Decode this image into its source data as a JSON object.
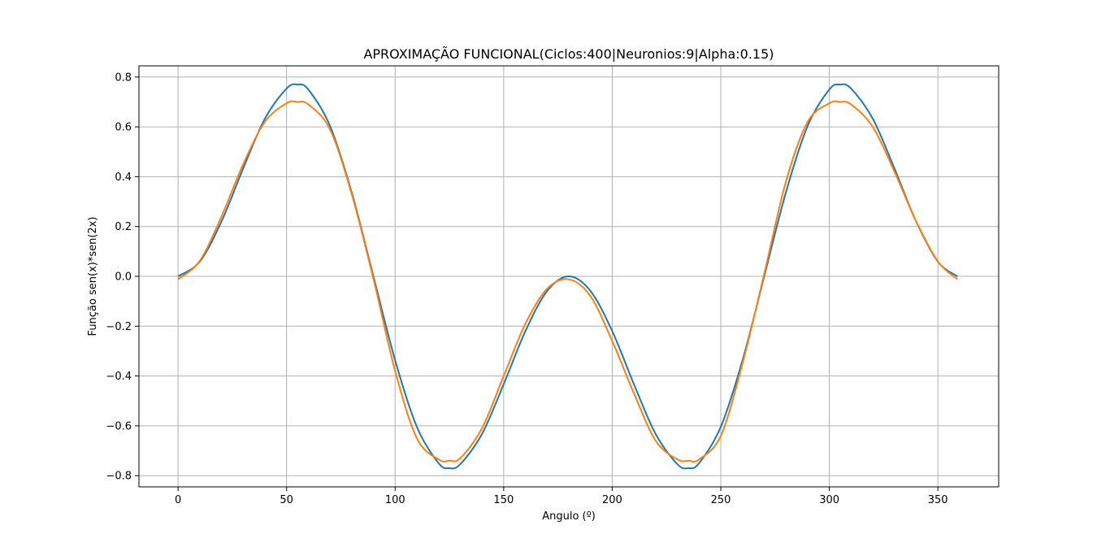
{
  "chart_data": {
    "type": "line",
    "title": "APROXIMAÇÃO FUNCIONAL(Ciclos:400|Neuronios:9|Alpha:0.15)",
    "xlabel": "Angulo (º)",
    "ylabel": "Função sen(x)*sen(2x)",
    "xlim": [
      -18,
      378
    ],
    "ylim": [
      -0.845,
      0.845
    ],
    "xticks": [
      0,
      50,
      100,
      150,
      200,
      250,
      300,
      350
    ],
    "xtick_labels": [
      "0",
      "50",
      "100",
      "150",
      "200",
      "250",
      "300",
      "350"
    ],
    "yticks": [
      0.8,
      0.6,
      0.4,
      0.2,
      0.0,
      -0.2,
      -0.4,
      -0.6,
      -0.8
    ],
    "ytick_labels": [
      "0.8",
      "0.6",
      "0.4",
      "0.2",
      "0.0",
      "−0.2",
      "−0.4",
      "−0.6",
      "−0.8"
    ],
    "grid": true,
    "x": [
      0,
      10,
      20,
      30,
      40,
      50,
      55,
      60,
      70,
      80,
      90,
      100,
      110,
      120,
      125,
      130,
      140,
      150,
      160,
      170,
      180,
      190,
      200,
      210,
      220,
      230,
      235,
      240,
      250,
      260,
      270,
      280,
      290,
      300,
      305,
      310,
      320,
      330,
      340,
      350,
      359
    ],
    "series": [
      {
        "color": "#1f77b4",
        "values": [
          0.0,
          0.059,
          0.22,
          0.433,
          0.633,
          0.754,
          0.77,
          0.75,
          0.604,
          0.337,
          0.0,
          -0.337,
          -0.604,
          -0.75,
          -0.77,
          -0.754,
          -0.633,
          -0.433,
          -0.22,
          -0.059,
          0.0,
          -0.059,
          -0.22,
          -0.433,
          -0.633,
          -0.754,
          -0.77,
          -0.75,
          -0.604,
          -0.337,
          0.0,
          0.337,
          0.604,
          0.75,
          0.77,
          0.754,
          0.633,
          0.433,
          0.22,
          0.059,
          0.0
        ]
      },
      {
        "color": "#ff7f0e",
        "values": [
          -0.012,
          0.062,
          0.24,
          0.45,
          0.62,
          0.695,
          0.7,
          0.69,
          0.59,
          0.33,
          -0.01,
          -0.38,
          -0.65,
          -0.735,
          -0.74,
          -0.73,
          -0.61,
          -0.4,
          -0.19,
          -0.05,
          -0.012,
          -0.08,
          -0.26,
          -0.47,
          -0.66,
          -0.735,
          -0.74,
          -0.735,
          -0.64,
          -0.35,
          0.01,
          0.38,
          0.62,
          0.695,
          0.7,
          0.69,
          0.6,
          0.42,
          0.22,
          0.06,
          -0.012
        ]
      }
    ]
  }
}
